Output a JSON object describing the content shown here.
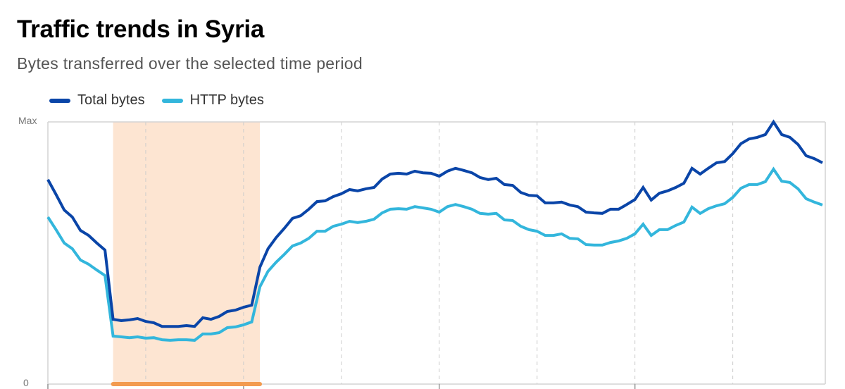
{
  "title": "Traffic trends in Syria",
  "subtitle": "Bytes transferred over the selected time period",
  "colors": {
    "total": "#0a45a8",
    "http": "#33b6dc",
    "highlight_fill": "#fde5d2",
    "highlight_bar": "#f39b4f"
  },
  "chart_data": {
    "type": "line",
    "title": "Traffic trends in Syria",
    "ylim": [
      0,
      1
    ],
    "y_tick_labels": [
      "0",
      "Max"
    ],
    "legend": "top-left",
    "grid": "vertical dashed",
    "highlight_range_index": [
      8,
      26
    ],
    "series": [
      {
        "name": "Total bytes",
        "values": [
          0.78,
          0.723,
          0.664,
          0.637,
          0.586,
          0.567,
          0.538,
          0.511,
          0.247,
          0.242,
          0.245,
          0.25,
          0.239,
          0.234,
          0.22,
          0.22,
          0.22,
          0.223,
          0.22,
          0.253,
          0.247,
          0.258,
          0.277,
          0.282,
          0.293,
          0.301,
          0.446,
          0.516,
          0.559,
          0.594,
          0.632,
          0.642,
          0.667,
          0.696,
          0.699,
          0.715,
          0.726,
          0.742,
          0.737,
          0.745,
          0.75,
          0.782,
          0.801,
          0.804,
          0.801,
          0.812,
          0.806,
          0.804,
          0.793,
          0.812,
          0.823,
          0.815,
          0.806,
          0.788,
          0.78,
          0.785,
          0.761,
          0.758,
          0.731,
          0.72,
          0.718,
          0.691,
          0.691,
          0.694,
          0.683,
          0.677,
          0.656,
          0.653,
          0.651,
          0.667,
          0.667,
          0.685,
          0.704,
          0.75,
          0.702,
          0.728,
          0.737,
          0.75,
          0.766,
          0.823,
          0.801,
          0.823,
          0.844,
          0.849,
          0.879,
          0.917,
          0.935,
          0.941,
          0.952,
          1.0,
          0.952,
          0.941,
          0.914,
          0.871,
          0.86,
          0.844
        ]
      },
      {
        "name": "HTTP bytes",
        "values": [
          0.637,
          0.589,
          0.538,
          0.516,
          0.473,
          0.457,
          0.435,
          0.414,
          0.183,
          0.18,
          0.177,
          0.18,
          0.175,
          0.177,
          0.169,
          0.167,
          0.169,
          0.169,
          0.167,
          0.191,
          0.191,
          0.196,
          0.215,
          0.218,
          0.226,
          0.237,
          0.371,
          0.43,
          0.465,
          0.495,
          0.527,
          0.538,
          0.556,
          0.583,
          0.583,
          0.602,
          0.61,
          0.621,
          0.616,
          0.621,
          0.629,
          0.653,
          0.667,
          0.669,
          0.667,
          0.677,
          0.672,
          0.667,
          0.656,
          0.677,
          0.685,
          0.677,
          0.667,
          0.651,
          0.648,
          0.651,
          0.626,
          0.624,
          0.602,
          0.589,
          0.583,
          0.567,
          0.567,
          0.573,
          0.556,
          0.554,
          0.532,
          0.53,
          0.53,
          0.54,
          0.546,
          0.556,
          0.573,
          0.61,
          0.567,
          0.589,
          0.589,
          0.605,
          0.618,
          0.675,
          0.651,
          0.669,
          0.68,
          0.688,
          0.712,
          0.747,
          0.761,
          0.761,
          0.772,
          0.82,
          0.774,
          0.769,
          0.745,
          0.707,
          0.694,
          0.683
        ]
      }
    ]
  }
}
